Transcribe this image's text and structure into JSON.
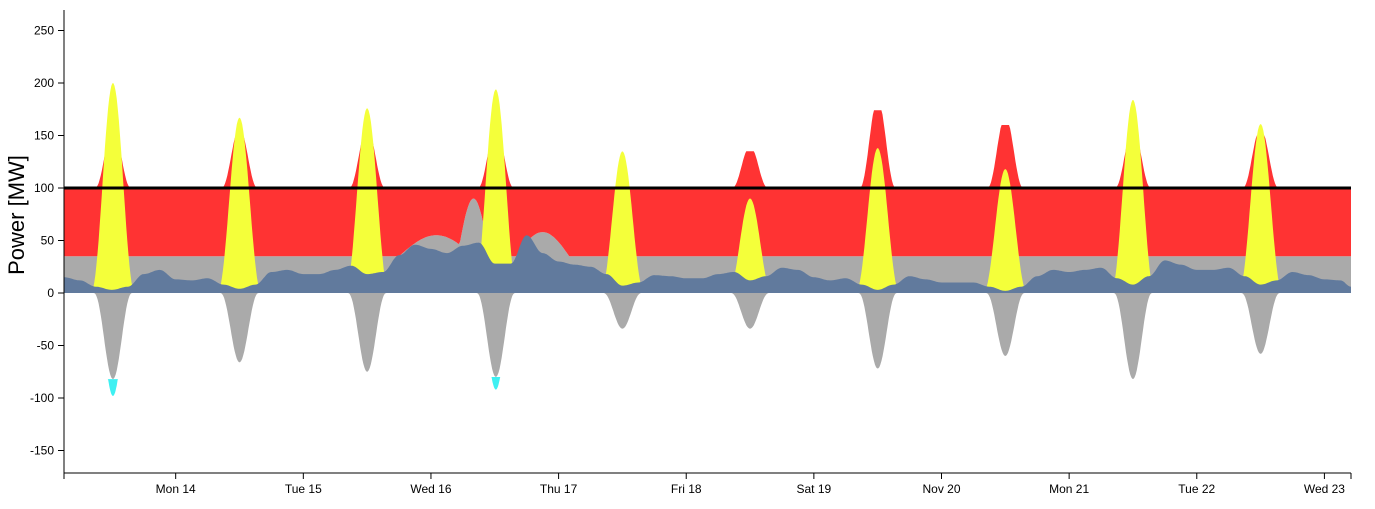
{
  "chart_data": {
    "type": "area",
    "title": "",
    "xlabel": "",
    "ylabel": "Power [MW]",
    "ylim": [
      -170,
      270
    ],
    "yticks": [
      250,
      200,
      150,
      100,
      50,
      0,
      -50,
      -100,
      -150
    ],
    "xlim": [
      "2022-11-13T03:00",
      "2022-11-23T05:00"
    ],
    "xtick_labels": [
      "Mon 14",
      "Tue 15",
      "Wed 16",
      "Thu 17",
      "Fri 18",
      "Sat 19",
      "Nov 20",
      "Mon 21",
      "Tue 22",
      "Wed 23"
    ],
    "xtick_dates": [
      "2022-11-14",
      "2022-11-15",
      "2022-11-16",
      "2022-11-17",
      "2022-11-18",
      "2022-11-19",
      "2022-11-20",
      "2022-11-21",
      "2022-11-22",
      "2022-11-23"
    ],
    "grid": false,
    "legend": "none",
    "colors": {
      "red_band": "#ff3333",
      "solar": "#f4ff3a",
      "gray": "#aaaaaa",
      "blue": "#617a9d",
      "cyan": "#3ef0f2",
      "limit_line": "#000000"
    },
    "limit_line": {
      "y": 100
    },
    "gray_band": {
      "lower": 0,
      "upper": 35
    },
    "red_band": {
      "lower": 35,
      "upper": 100
    },
    "series": [
      {
        "role": "solar_peaks",
        "points": [
          {
            "date": "2022-11-13",
            "peak_hour": 12.2,
            "peak": 200,
            "red_peak": 150,
            "gray_min": -82,
            "cyan_min": -98
          },
          {
            "date": "2022-11-14",
            "peak_hour": 12.0,
            "peak": 167,
            "red_peak": 150,
            "gray_min": -66,
            "cyan_min": null
          },
          {
            "date": "2022-11-15",
            "peak_hour": 12.0,
            "peak": 176,
            "red_peak": 150,
            "gray_min": -75,
            "cyan_min": null
          },
          {
            "date": "2022-11-16",
            "peak_hour": 12.2,
            "peak": 194,
            "red_peak": 150,
            "gray_min": -80,
            "cyan_min": -92
          },
          {
            "date": "2022-11-17",
            "peak_hour": 12.0,
            "peak": 135,
            "red_peak": 100,
            "gray_min": -34,
            "cyan_min": null
          },
          {
            "date": "2022-11-18",
            "peak_hour": 12.0,
            "peak": 90,
            "red_peak": 135,
            "gray_min": -34,
            "cyan_min": null
          },
          {
            "date": "2022-11-19",
            "peak_hour": 12.0,
            "peak": 138,
            "red_peak": 174,
            "gray_min": -72,
            "cyan_min": null
          },
          {
            "date": "2022-11-20",
            "peak_hour": 12.0,
            "peak": 118,
            "red_peak": 160,
            "gray_min": -60,
            "cyan_min": null
          },
          {
            "date": "2022-11-21",
            "peak_hour": 12.0,
            "peak": 184,
            "red_peak": 150,
            "gray_min": -82,
            "cyan_min": null
          },
          {
            "date": "2022-11-22",
            "peak_hour": 12.0,
            "peak": 161,
            "red_peak": 150,
            "gray_min": -58,
            "cyan_min": null
          }
        ]
      },
      {
        "role": "blue_load",
        "points": [
          [
            "2022-11-13T03:00",
            15
          ],
          [
            "2022-11-13T06:00",
            12
          ],
          [
            "2022-11-13T09:00",
            6
          ],
          [
            "2022-11-13T12:00",
            3
          ],
          [
            "2022-11-13T15:00",
            6
          ],
          [
            "2022-11-13T18:00",
            18
          ],
          [
            "2022-11-13T21:00",
            22
          ],
          [
            "2022-11-14T00:00",
            13
          ],
          [
            "2022-11-14T03:00",
            12
          ],
          [
            "2022-11-14T06:00",
            14
          ],
          [
            "2022-11-14T09:00",
            8
          ],
          [
            "2022-11-14T12:00",
            4
          ],
          [
            "2022-11-14T15:00",
            8
          ],
          [
            "2022-11-14T18:00",
            20
          ],
          [
            "2022-11-14T21:00",
            22
          ],
          [
            "2022-11-15T00:00",
            18
          ],
          [
            "2022-11-15T03:00",
            18
          ],
          [
            "2022-11-15T06:00",
            22
          ],
          [
            "2022-11-15T09:00",
            26
          ],
          [
            "2022-11-15T12:00",
            18
          ],
          [
            "2022-11-15T15:00",
            20
          ],
          [
            "2022-11-15T18:00",
            36
          ],
          [
            "2022-11-15T21:00",
            46
          ],
          [
            "2022-11-16T00:00",
            42
          ],
          [
            "2022-11-16T03:00",
            38
          ],
          [
            "2022-11-16T06:00",
            45
          ],
          [
            "2022-11-16T09:00",
            48
          ],
          [
            "2022-11-16T12:00",
            28
          ],
          [
            "2022-11-16T15:00",
            28
          ],
          [
            "2022-11-16T18:00",
            55
          ],
          [
            "2022-11-16T21:00",
            38
          ],
          [
            "2022-11-17T00:00",
            30
          ],
          [
            "2022-11-17T03:00",
            27
          ],
          [
            "2022-11-17T06:00",
            25
          ],
          [
            "2022-11-17T09:00",
            18
          ],
          [
            "2022-11-17T12:00",
            7
          ],
          [
            "2022-11-17T15:00",
            10
          ],
          [
            "2022-11-17T18:00",
            17
          ],
          [
            "2022-11-17T21:00",
            16
          ],
          [
            "2022-11-18T00:00",
            14
          ],
          [
            "2022-11-18T03:00",
            14
          ],
          [
            "2022-11-18T06:00",
            18
          ],
          [
            "2022-11-18T09:00",
            20
          ],
          [
            "2022-11-18T12:00",
            12
          ],
          [
            "2022-11-18T15:00",
            16
          ],
          [
            "2022-11-18T18:00",
            24
          ],
          [
            "2022-11-18T21:00",
            22
          ],
          [
            "2022-11-19T00:00",
            15
          ],
          [
            "2022-11-19T03:00",
            12
          ],
          [
            "2022-11-19T06:00",
            14
          ],
          [
            "2022-11-19T09:00",
            8
          ],
          [
            "2022-11-19T12:00",
            3
          ],
          [
            "2022-11-19T15:00",
            8
          ],
          [
            "2022-11-19T18:00",
            16
          ],
          [
            "2022-11-19T21:00",
            13
          ],
          [
            "2022-11-20T00:00",
            10
          ],
          [
            "2022-11-20T03:00",
            10
          ],
          [
            "2022-11-20T06:00",
            10
          ],
          [
            "2022-11-20T09:00",
            6
          ],
          [
            "2022-11-20T12:00",
            2
          ],
          [
            "2022-11-20T15:00",
            6
          ],
          [
            "2022-11-20T18:00",
            16
          ],
          [
            "2022-11-20T21:00",
            22
          ],
          [
            "2022-11-21T00:00",
            20
          ],
          [
            "2022-11-21T03:00",
            22
          ],
          [
            "2022-11-21T06:00",
            24
          ],
          [
            "2022-11-21T09:00",
            14
          ],
          [
            "2022-11-21T12:00",
            8
          ],
          [
            "2022-11-21T15:00",
            16
          ],
          [
            "2022-11-21T18:00",
            31
          ],
          [
            "2022-11-21T21:00",
            27
          ],
          [
            "2022-11-22T00:00",
            22
          ],
          [
            "2022-11-22T03:00",
            22
          ],
          [
            "2022-11-22T06:00",
            24
          ],
          [
            "2022-11-22T09:00",
            16
          ],
          [
            "2022-11-22T12:00",
            8
          ],
          [
            "2022-11-22T15:00",
            12
          ],
          [
            "2022-11-22T18:00",
            20
          ],
          [
            "2022-11-22T21:00",
            17
          ],
          [
            "2022-11-23T00:00",
            13
          ],
          [
            "2022-11-23T03:00",
            12
          ],
          [
            "2022-11-23T05:00",
            6
          ]
        ]
      }
    ],
    "gray_bumps": [
      {
        "start": "2022-11-15T18:00",
        "end": "2022-11-16T08:00",
        "peak": 55
      },
      {
        "start": "2022-11-16T05:00",
        "end": "2022-11-16T11:00",
        "peak": 90
      },
      {
        "start": "2022-11-16T16:00",
        "end": "2022-11-17T02:00",
        "peak": 58
      }
    ]
  }
}
